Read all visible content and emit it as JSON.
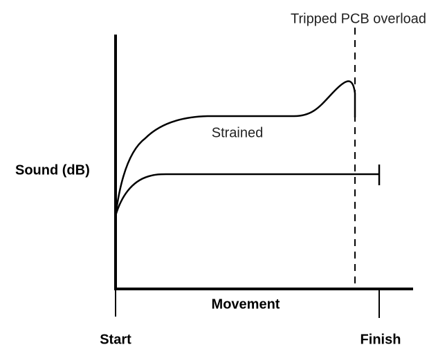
{
  "annotation": "Tripped PCB overload",
  "curve_label": "Strained",
  "y_axis_label": "Sound (dB)",
  "x_axis_label": "Movement",
  "start_label": "Start",
  "finish_label": "Finish"
}
